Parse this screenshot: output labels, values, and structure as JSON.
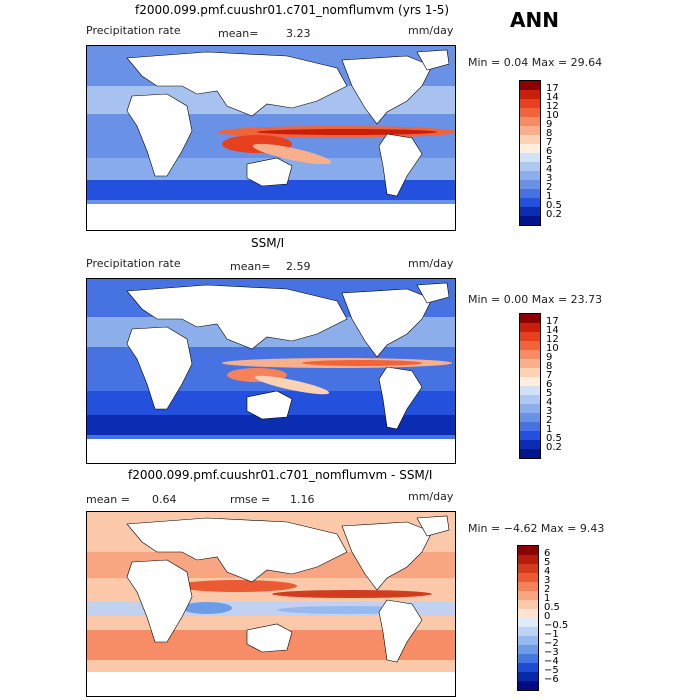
{
  "season": "ANN",
  "units": "mm/day",
  "chart_data": [
    {
      "type": "heatmap",
      "title": "f2000.099.pmf.cuushr01.c701_nomflumvm (yrs 1-5)",
      "variable": "Precipitation rate",
      "mean_label": "mean=",
      "mean": "3.23",
      "min_max_label": "Min =    0.04 Max =  29.64",
      "min": 0.04,
      "max": 29.64,
      "levels": [
        "17",
        "14",
        "12",
        "10",
        "9",
        "8",
        "7",
        "6",
        "5",
        "4",
        "3",
        "2",
        "1",
        "0.5",
        "0.2"
      ],
      "colors": [
        "#8b0000",
        "#c81e0a",
        "#e6401e",
        "#f0643c",
        "#f58c64",
        "#f8b08c",
        "#fbd2b4",
        "#fdeedd",
        "#d2e1f5",
        "#afc8f0",
        "#8cafeb",
        "#6991e6",
        "#4673e1",
        "#2350dc",
        "#0a2db4",
        "#00148c"
      ]
    },
    {
      "type": "heatmap",
      "title": "SSM/I",
      "variable": "Precipitation rate",
      "mean_label": "mean=",
      "mean": "2.59",
      "min_max_label": "Min =    0.00 Max =  23.73",
      "min": 0.0,
      "max": 23.73,
      "levels": [
        "17",
        "14",
        "12",
        "10",
        "9",
        "8",
        "7",
        "6",
        "5",
        "4",
        "3",
        "2",
        "1",
        "0.5",
        "0.2"
      ],
      "colors": [
        "#8b0000",
        "#c81e0a",
        "#e6401e",
        "#f0643c",
        "#f58c64",
        "#f8b08c",
        "#fbd2b4",
        "#fdeedd",
        "#d2e1f5",
        "#afc8f0",
        "#8cafeb",
        "#6991e6",
        "#4673e1",
        "#2350dc",
        "#0a2db4",
        "#00148c"
      ]
    },
    {
      "type": "heatmap",
      "title": "f2000.099.pmf.cuushr01.c701_nomflumvm - SSM/I",
      "mean_label": "mean =",
      "mean": "0.64",
      "rmse_label": "rmse =",
      "rmse": "1.16",
      "min_max_label": "Min =  −4.62 Max =    9.43",
      "min": -4.62,
      "max": 9.43,
      "levels": [
        "6",
        "5",
        "4",
        "3",
        "2",
        "1",
        "0.5",
        "0",
        "−0.5",
        "−1",
        "−2",
        "−3",
        "−4",
        "−5",
        "−6"
      ],
      "colors": [
        "#8b0000",
        "#b41e0a",
        "#d23c1e",
        "#eb5a32",
        "#f5825a",
        "#f8a582",
        "#fbc8aa",
        "#fde4d2",
        "#e1ebf8",
        "#bed2f5",
        "#96b9f0",
        "#6e9be6",
        "#4678e1",
        "#1e4bd2",
        "#0a28aa",
        "#000a82"
      ]
    }
  ]
}
